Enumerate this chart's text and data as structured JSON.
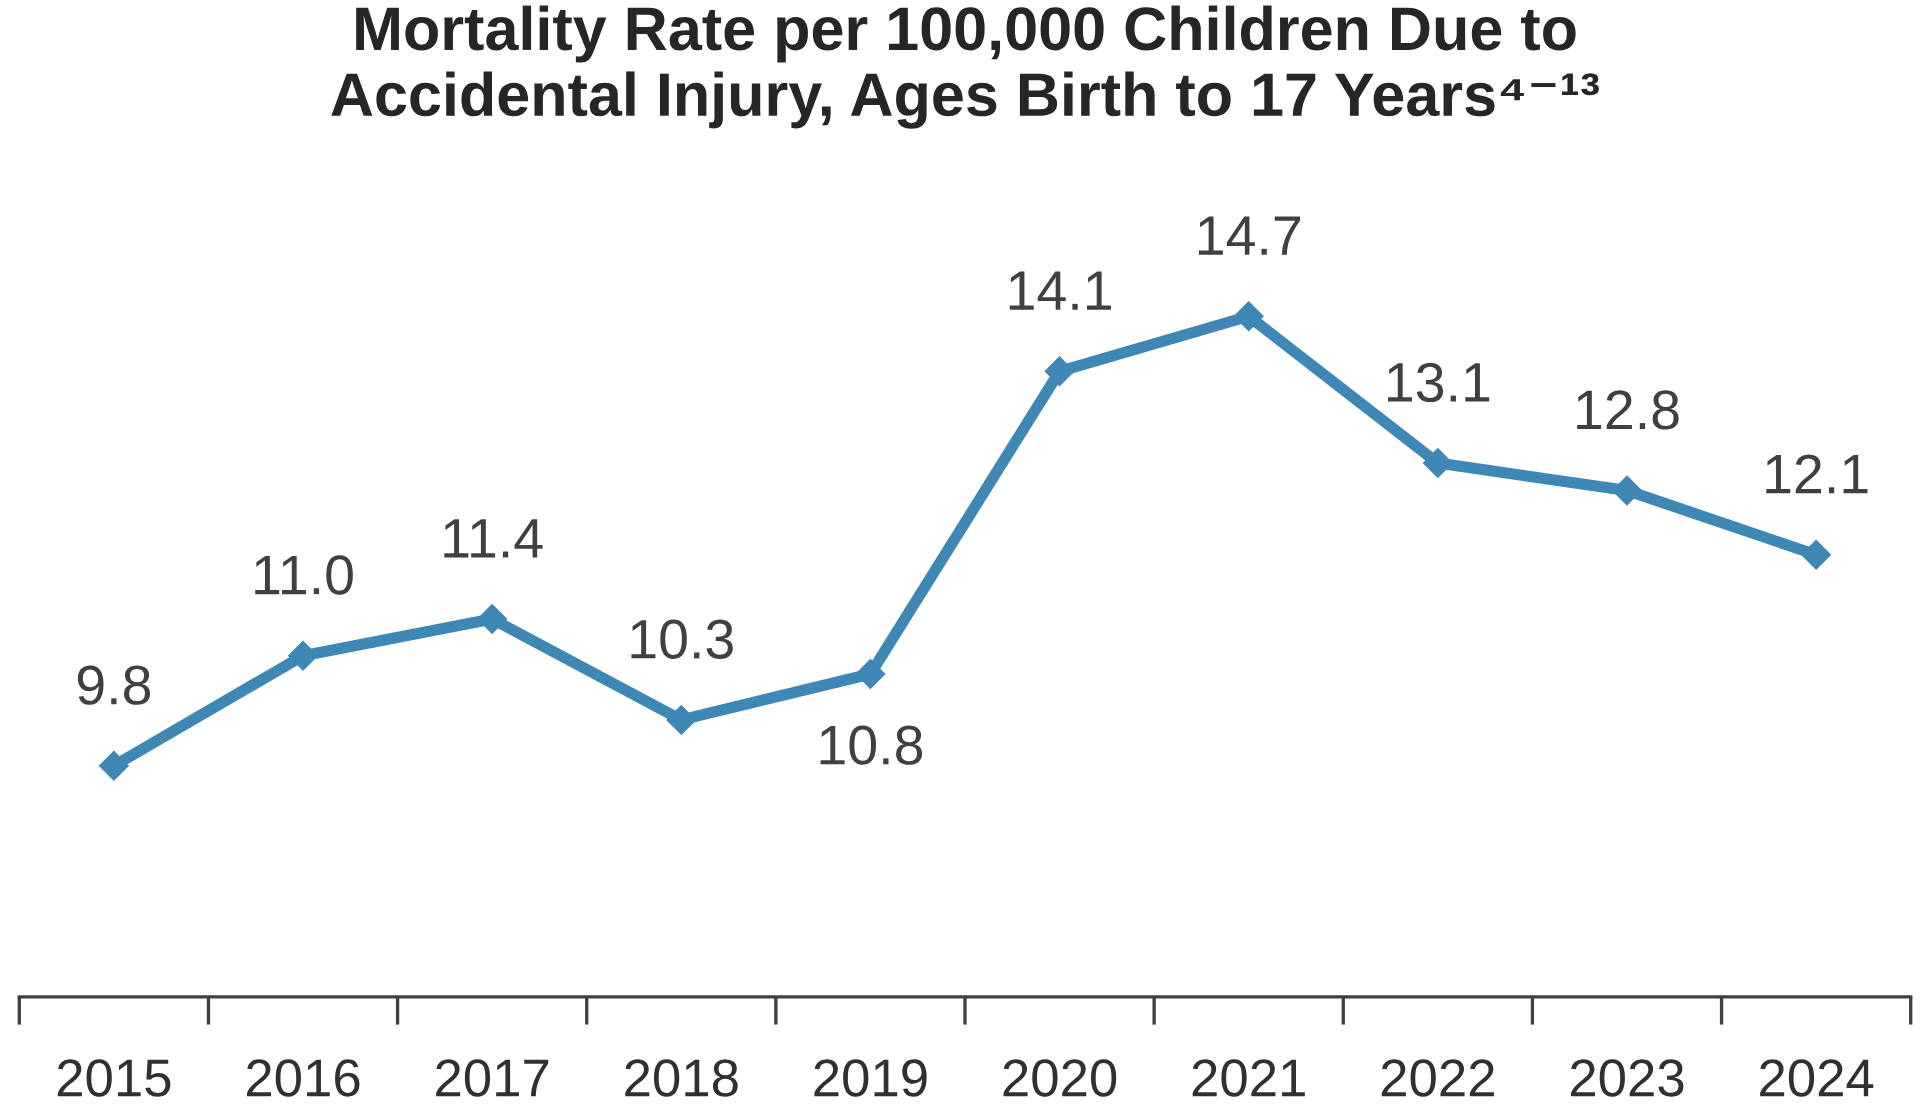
{
  "chart_data": {
    "type": "line",
    "title": "Mortality Rate per 100,000 Children Due to\nAccidental Injury, Ages Birth to 17 Years⁴⁻¹³",
    "categories": [
      "2015",
      "2016",
      "2017",
      "2018",
      "2019",
      "2020",
      "2021",
      "2022",
      "2023",
      "2024"
    ],
    "series": [
      {
        "color": "#3f88b5",
        "values": [
          9.8,
          11.0,
          11.4,
          10.3,
          10.8,
          14.1,
          14.7,
          13.1,
          12.8,
          12.1
        ],
        "value_labels": [
          "9.8",
          "11.0",
          "11.4",
          "10.3",
          "10.8",
          "14.1",
          "14.7",
          "13.1",
          "12.8",
          "12.1"
        ]
      }
    ],
    "marker": "diamond",
    "line_style": "solid",
    "grid": false,
    "legend": false
  }
}
